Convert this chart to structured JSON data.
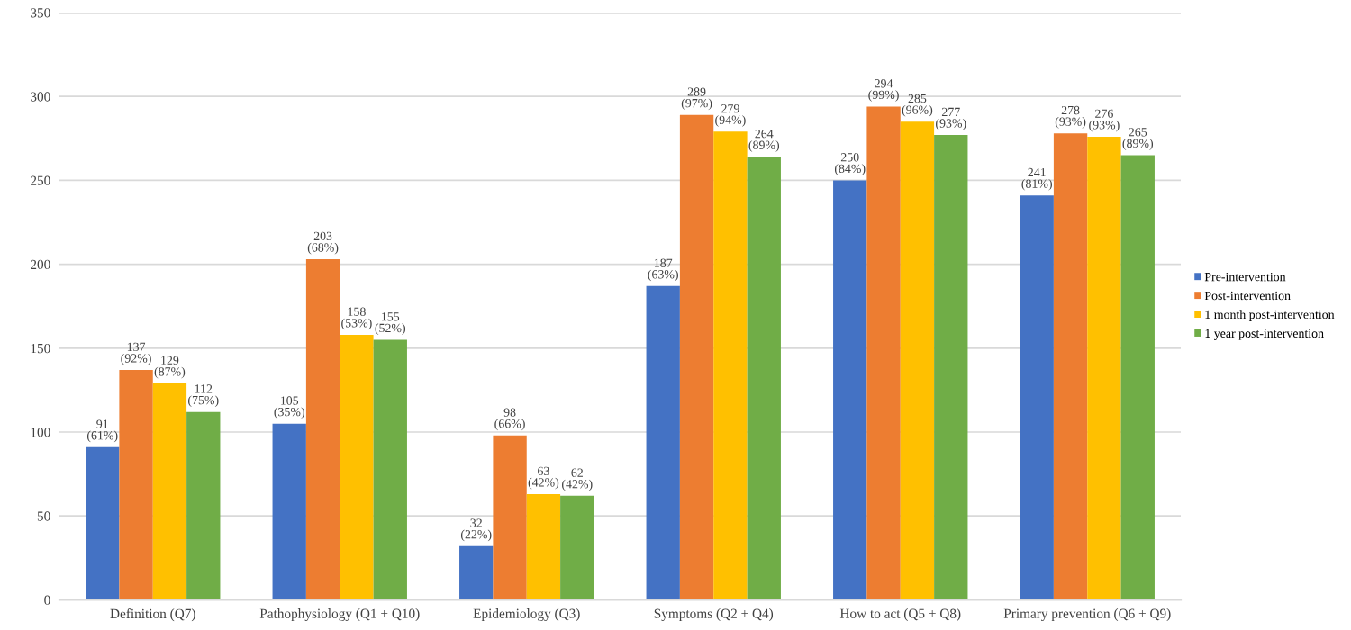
{
  "chart_data": {
    "type": "bar",
    "categories": [
      "Definition (Q7)",
      "Pathophysiology (Q1 + Q10)",
      "Epidemiology (Q3)",
      "Symptoms (Q2 + Q4)",
      "How to act (Q5 + Q8)",
      "Primary prevention (Q6 + Q9)"
    ],
    "series": [
      {
        "name": "Pre-intervention",
        "color": "#4472c4",
        "values": [
          91,
          105,
          32,
          187,
          250,
          241
        ],
        "value_labels": [
          "91\n(61%)",
          "105\n(35%)",
          "32\n(22%)",
          "187\n(63%)",
          "250\n(84%)",
          "241\n(81%)"
        ]
      },
      {
        "name": "Post-intervention",
        "color": "#ed7d31",
        "values": [
          137,
          203,
          98,
          289,
          294,
          278
        ],
        "value_labels": [
          "137\n(92%)",
          "203\n(68%)",
          "98\n(66%)",
          "289\n(97%)",
          "294\n(99%)",
          "278\n(93%)"
        ]
      },
      {
        "name": "1 month post-intervention",
        "color": "#ffc000",
        "values": [
          129,
          158,
          63,
          279,
          285,
          276
        ],
        "value_labels": [
          "129\n(87%)",
          "158\n(53%)",
          "63\n(42%)",
          "279\n(94%)",
          "285\n(96%)",
          "276\n(93%)"
        ]
      },
      {
        "name": "1 year post-intervention",
        "color": "#70ad47",
        "values": [
          112,
          155,
          62,
          264,
          277,
          265
        ],
        "value_labels": [
          "112\n(75%)",
          "155\n(52%)",
          "62\n(42%)",
          "264\n(89%)",
          "277\n(93%)",
          "265\n(89%)"
        ]
      }
    ],
    "ylim": [
      0,
      350
    ],
    "yticks": [
      0,
      50,
      100,
      150,
      200,
      250,
      300,
      350
    ],
    "grid": "y",
    "legend": "right"
  }
}
